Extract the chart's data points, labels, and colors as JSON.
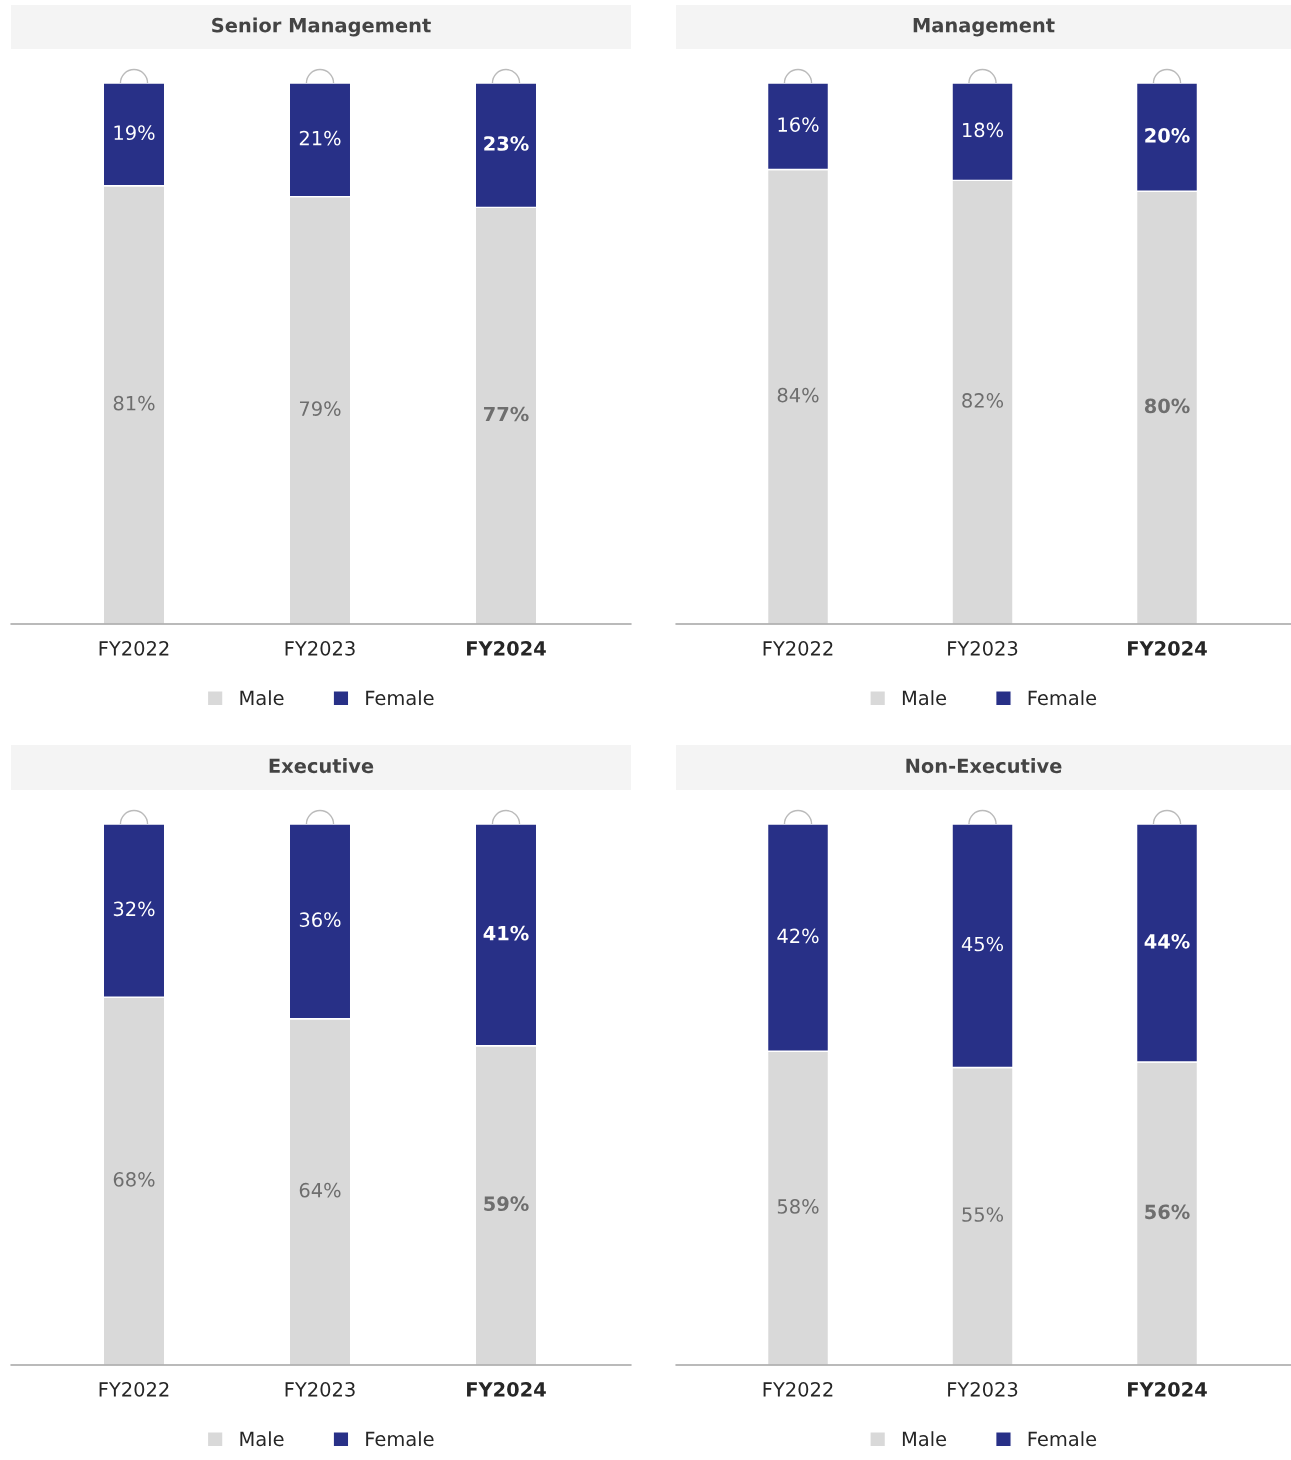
{
  "chart_data": [
    {
      "type": "bar",
      "title": "Senior Management",
      "categories": [
        "FY2022",
        "FY2023",
        "FY2024"
      ],
      "stacked": true,
      "legend": "bottom",
      "tick_labels": "x",
      "series": [
        {
          "name": "Male",
          "color": "#d9d9d9",
          "values": [
            81,
            79,
            77
          ],
          "value_labels": [
            "81%",
            "79%",
            "77%"
          ]
        },
        {
          "name": "Female",
          "color": "#283087",
          "values": [
            19,
            21,
            23
          ],
          "value_labels": [
            "19%",
            "21%",
            "23%"
          ]
        }
      ]
    },
    {
      "type": "bar",
      "title": "Management",
      "categories": [
        "FY2022",
        "FY2023",
        "FY2024"
      ],
      "stacked": true,
      "legend": "bottom",
      "tick_labels": "x",
      "series": [
        {
          "name": "Male",
          "color": "#d9d9d9",
          "values": [
            84,
            82,
            80
          ],
          "value_labels": [
            "84%",
            "82%",
            "80%"
          ]
        },
        {
          "name": "Female",
          "color": "#283087",
          "values": [
            16,
            18,
            20
          ],
          "value_labels": [
            "16%",
            "18%",
            "20%"
          ]
        }
      ]
    },
    {
      "type": "bar",
      "title": "Executive",
      "categories": [
        "FY2022",
        "FY2023",
        "FY2024"
      ],
      "stacked": true,
      "legend": "bottom",
      "tick_labels": "x",
      "series": [
        {
          "name": "Male",
          "color": "#d9d9d9",
          "values": [
            68,
            64,
            59
          ],
          "value_labels": [
            "68%",
            "64%",
            "59%"
          ]
        },
        {
          "name": "Female",
          "color": "#283087",
          "values": [
            32,
            36,
            41
          ],
          "value_labels": [
            "32%",
            "36%",
            "41%"
          ]
        }
      ]
    },
    {
      "type": "bar",
      "title": "Non-Executive",
      "categories": [
        "FY2022",
        "FY2023",
        "FY2024"
      ],
      "stacked": true,
      "legend": "bottom",
      "tick_labels": "x",
      "series": [
        {
          "name": "Male",
          "color": "#d9d9d9",
          "values": [
            58,
            55,
            56
          ],
          "value_labels": [
            "58%",
            "55%",
            "56%"
          ]
        },
        {
          "name": "Female",
          "color": "#283087",
          "values": [
            42,
            45,
            44
          ],
          "value_labels": [
            "42%",
            "45%",
            "44%"
          ]
        }
      ]
    }
  ]
}
